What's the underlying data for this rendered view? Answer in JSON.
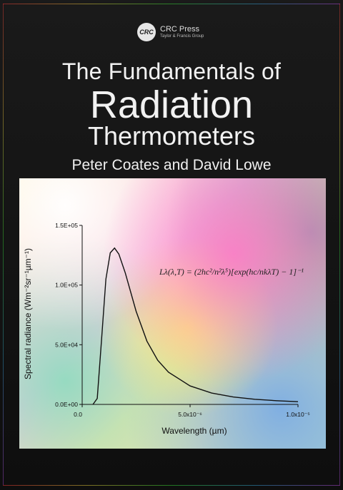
{
  "publisher": {
    "logo_text": "CRC",
    "name": "CRC Press",
    "group": "Taylor & Francis Group"
  },
  "book": {
    "title_line1": "The Fundamentals of",
    "title_line2": "Radiation",
    "title_line3": "Thermometers",
    "authors": "Peter Coates and David Lowe"
  },
  "colors": {
    "background": "#151515",
    "title": "#f2f2f2",
    "curve": "#111111"
  },
  "chart_data": {
    "type": "line",
    "xlabel": "Wavelength (µm)",
    "ylabel": "Spectral radiance (Wm⁻²sr⁻¹µm⁻¹)",
    "x_ticks": [
      "0.0",
      "5.0x10⁻⁶",
      "1.0x10⁻⁵"
    ],
    "y_ticks": [
      "0.0E+00",
      "5.0E+04",
      "1.0E+05",
      "1.5E+05"
    ],
    "xlim": [
      0,
      1e-05
    ],
    "ylim": [
      0,
      150000
    ],
    "formula": "Lλ(λ,T) = (2hc²/n²λ⁵)[exp(hc/nkλT) − 1]⁻¹",
    "series": [
      {
        "x": [
          5e-07,
          7e-07,
          9e-07,
          1.1e-06,
          1.3e-06,
          1.5e-06,
          1.7e-06,
          2e-06,
          2.5e-06,
          3e-06,
          3.5e-06,
          4e-06,
          5e-06,
          6e-06,
          7e-06,
          8e-06,
          9e-06,
          1e-05
        ],
        "y": [
          0,
          5000,
          55000,
          105000,
          127000,
          131000,
          126000,
          110000,
          78000,
          53000,
          37000,
          27000,
          15500,
          9500,
          6200,
          4300,
          3100,
          2300
        ]
      }
    ]
  }
}
